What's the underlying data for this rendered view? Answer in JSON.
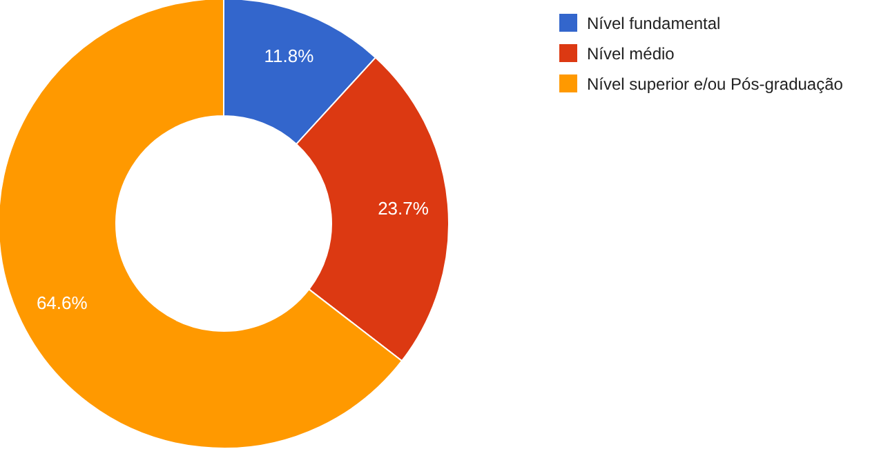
{
  "chart_data": {
    "type": "donut",
    "categories": [
      "Nível fundamental",
      "Nível médio",
      "Nível superior e/ou Pós-graduação"
    ],
    "values": [
      11.8,
      23.7,
      64.6
    ],
    "colors": [
      "#3366cc",
      "#dc3912",
      "#ff9900"
    ],
    "value_labels": [
      "11.8%",
      "23.7%",
      "64.6%"
    ],
    "legend": "top right"
  }
}
